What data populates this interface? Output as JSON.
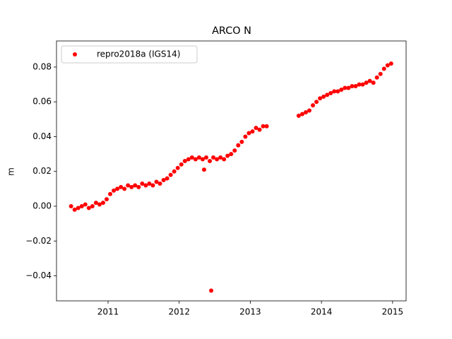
{
  "chart_data": {
    "type": "scatter",
    "title": "ARCO N",
    "y_label": "m",
    "legend": "upper left",
    "series": [
      {
        "name": "repro2018a (IGS14)",
        "color": "#ff0000",
        "x": [
          2010.48,
          2010.53,
          2010.58,
          2010.63,
          2010.68,
          2010.73,
          2010.78,
          2010.83,
          2010.88,
          2010.93,
          2010.98,
          2011.03,
          2011.08,
          2011.13,
          2011.18,
          2011.23,
          2011.28,
          2011.33,
          2011.38,
          2011.43,
          2011.48,
          2011.53,
          2011.58,
          2011.63,
          2011.68,
          2011.73,
          2011.78,
          2011.83,
          2011.88,
          2011.93,
          2011.98,
          2012.03,
          2012.08,
          2012.13,
          2012.18,
          2012.23,
          2012.28,
          2012.33,
          2012.38,
          2012.43,
          2012.48,
          2012.53,
          2012.58,
          2012.63,
          2012.68,
          2012.73,
          2012.78,
          2012.83,
          2012.88,
          2012.93,
          2012.98,
          2013.03,
          2013.08,
          2013.13,
          2013.18,
          2013.23,
          2012.45,
          2012.35,
          2013.68,
          2013.73,
          2013.78,
          2013.83,
          2013.88,
          2013.93,
          2013.98,
          2014.03,
          2014.08,
          2014.13,
          2014.18,
          2014.23,
          2014.28,
          2014.33,
          2014.38,
          2014.43,
          2014.48,
          2014.53,
          2014.58,
          2014.63,
          2014.68,
          2014.73,
          2014.78,
          2014.83,
          2014.88,
          2014.93,
          2014.98
        ],
        "values": [
          0.0,
          -0.002,
          -0.001,
          0.0,
          0.001,
          -0.001,
          0.0,
          0.002,
          0.001,
          0.002,
          0.004,
          0.007,
          0.009,
          0.01,
          0.011,
          0.01,
          0.012,
          0.011,
          0.012,
          0.011,
          0.013,
          0.012,
          0.013,
          0.012,
          0.014,
          0.013,
          0.015,
          0.016,
          0.018,
          0.02,
          0.022,
          0.024,
          0.026,
          0.027,
          0.028,
          0.027,
          0.028,
          0.027,
          0.028,
          0.026,
          0.028,
          0.027,
          0.028,
          0.027,
          0.029,
          0.03,
          0.032,
          0.035,
          0.037,
          0.04,
          0.042,
          0.043,
          0.045,
          0.044,
          0.046,
          0.046,
          -0.0485,
          0.021,
          0.052,
          0.053,
          0.054,
          0.055,
          0.058,
          0.06,
          0.062,
          0.063,
          0.064,
          0.065,
          0.066,
          0.066,
          0.067,
          0.068,
          0.068,
          0.069,
          0.069,
          0.07,
          0.07,
          0.071,
          0.072,
          0.071,
          0.074,
          0.076,
          0.079,
          0.081,
          0.082
        ]
      }
    ],
    "xlim": [
      2010.275,
      2015.19
    ],
    "xticks": [
      2011,
      2012,
      2013,
      2014,
      2015
    ],
    "ylim": [
      -0.0544,
      0.095
    ],
    "yticks": [
      {
        "value": -0.04,
        "label": "−0.04"
      },
      {
        "value": -0.02,
        "label": "−0.02"
      },
      {
        "value": 0,
        "label": "0.00"
      },
      {
        "value": 0.02,
        "label": "0.02"
      },
      {
        "value": 0.04,
        "label": "0.04"
      },
      {
        "value": 0.06,
        "label": "0.06"
      },
      {
        "value": 0.08,
        "label": "0.08"
      }
    ]
  }
}
